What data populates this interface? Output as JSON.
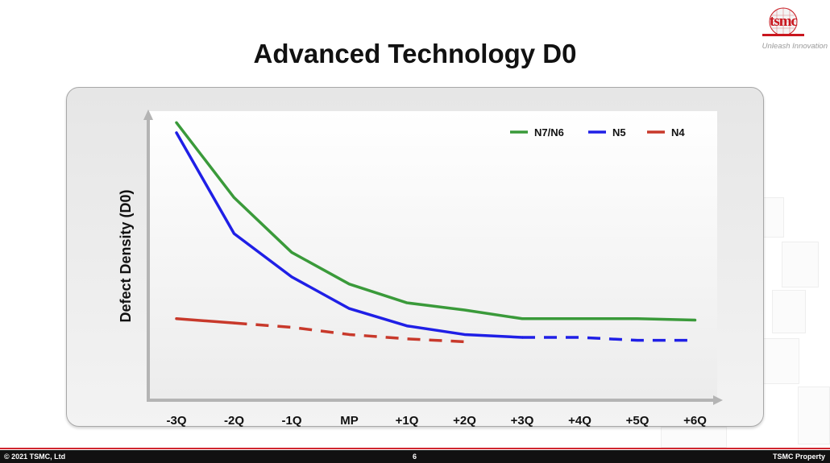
{
  "slide": {
    "title": "Advanced Technology D0",
    "logo_text": "tsmc",
    "tagline": "Unleash Innovation",
    "footer_left": "© 2021 TSMC, Ltd",
    "footer_page": "6",
    "footer_right": "TSMC Property"
  },
  "colors": {
    "accent": "#d0262f",
    "green": "#3a9a3a",
    "blue": "#1f1fe6",
    "red": "#c8392b"
  },
  "chart_data": {
    "type": "line",
    "ylabel": "Defect Density (D0)",
    "xlabel": "",
    "categories": [
      "-3Q",
      "-2Q",
      "-1Q",
      "MP",
      "+1Q",
      "+2Q",
      "+3Q",
      "+4Q",
      "+5Q",
      "+6Q"
    ],
    "ylim": [
      0,
      100
    ],
    "y_ticks_visible": false,
    "grid": false,
    "legend_position": "top-right",
    "series": [
      {
        "name": "N7/N6",
        "color": "#3a9a3a",
        "style": "solid",
        "values": [
          96,
          70,
          51,
          40,
          33.5,
          31,
          28,
          28,
          28,
          27.5
        ]
      },
      {
        "name": "N5",
        "color": "#1f1fe6",
        "style": "solid-then-dashed",
        "solid_until_index": 6,
        "values": [
          92.5,
          57.5,
          42.5,
          31.5,
          25.5,
          22.5,
          21.5,
          21.5,
          20.5,
          20.5
        ]
      },
      {
        "name": "N4",
        "color": "#c8392b",
        "style": "solid-then-dashed",
        "solid_until_index": 1,
        "values": [
          28,
          26.5,
          25,
          22.5,
          21,
          20,
          null,
          null,
          null,
          null
        ]
      }
    ]
  }
}
